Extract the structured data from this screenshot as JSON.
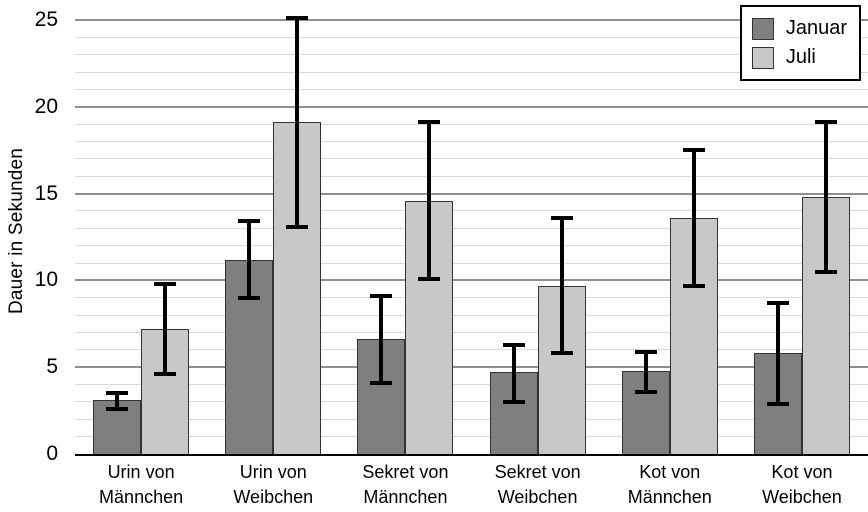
{
  "colors": {
    "januar_bar": "#7f7f7f",
    "juli_bar": "#c8c8c8",
    "bar_border": "#333333",
    "minor_grid": "#d9d9d9",
    "major_grid": "#8f8f8f",
    "axis_line": "#000000",
    "error_bar": "#000000"
  },
  "chart_data": {
    "type": "bar",
    "title": "",
    "xlabel": "",
    "ylabel": "Dauer in Sekunden",
    "ylim": [
      0,
      25
    ],
    "yticks": [
      0,
      5,
      10,
      15,
      20,
      25
    ],
    "y_minor_step": 1,
    "y_major_step": 5,
    "grid": "horizontal minor+major, on",
    "legend_position": "top-right",
    "categories": [
      "Urin von Männchen",
      "Urin von Weibchen",
      "Sekret von Männchen",
      "Sekret von Weibchen",
      "Kot von Männchen",
      "Kot von Weibchen"
    ],
    "category_tick_lines": [
      [
        "Urin von",
        "Männchen"
      ],
      [
        "Urin von",
        "Weibchen"
      ],
      [
        "Sekret von",
        "Männchen"
      ],
      [
        "Sekret von",
        "Weibchen"
      ],
      [
        "Kot von",
        "Männchen"
      ],
      [
        "Kot von",
        "Weibchen"
      ]
    ],
    "series": [
      {
        "name": "Januar",
        "color": "#7f7f7f",
        "values": [
          3.1,
          11.2,
          6.6,
          4.7,
          4.8,
          5.8
        ],
        "error_low": [
          2.6,
          9.0,
          4.1,
          3.0,
          3.6,
          2.9
        ],
        "error_high": [
          3.5,
          13.4,
          9.1,
          6.3,
          5.9,
          8.7
        ]
      },
      {
        "name": "Juli",
        "color": "#c8c8c8",
        "values": [
          7.2,
          19.1,
          14.6,
          9.7,
          13.6,
          14.8
        ],
        "error_low": [
          4.6,
          13.1,
          10.1,
          5.8,
          9.7,
          10.5
        ],
        "error_high": [
          9.8,
          25.1,
          19.1,
          13.6,
          17.5,
          19.1
        ]
      }
    ]
  }
}
